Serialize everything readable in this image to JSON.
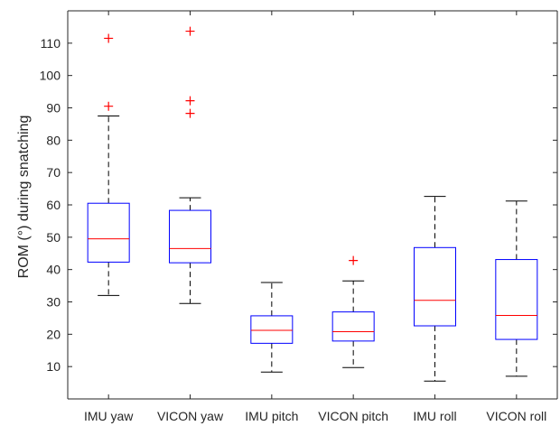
{
  "chart_data": {
    "type": "box",
    "title": "",
    "xlabel": "",
    "ylabel": "ROM (°) during snatching",
    "ylim": [
      0,
      120
    ],
    "yticks": [
      10,
      20,
      30,
      40,
      50,
      60,
      70,
      80,
      90,
      100,
      110
    ],
    "grid": false,
    "categories": [
      "IMU yaw",
      "VICON yaw",
      "IMU pitch",
      "VICON pitch",
      "IMU roll",
      "VICON roll"
    ],
    "boxes": [
      {
        "category": "IMU yaw",
        "whisker_low": 32.0,
        "q1": 42.3,
        "median": 49.5,
        "q3": 60.5,
        "whisker_high": 87.5,
        "outliers": [
          90.5,
          111.5
        ]
      },
      {
        "category": "VICON yaw",
        "whisker_low": 29.5,
        "q1": 42.1,
        "median": 46.5,
        "q3": 58.3,
        "whisker_high": 62.2,
        "outliers": [
          88.3,
          92.2,
          113.7
        ]
      },
      {
        "category": "IMU pitch",
        "whisker_low": 8.3,
        "q1": 17.2,
        "median": 21.2,
        "q3": 25.7,
        "whisker_high": 36.0,
        "outliers": []
      },
      {
        "category": "VICON pitch",
        "whisker_low": 9.7,
        "q1": 17.9,
        "median": 20.8,
        "q3": 26.9,
        "whisker_high": 36.5,
        "outliers": [
          42.8
        ]
      },
      {
        "category": "IMU roll",
        "whisker_low": 5.5,
        "q1": 22.6,
        "median": 30.5,
        "q3": 46.8,
        "whisker_high": 62.6,
        "outliers": []
      },
      {
        "category": "VICON roll",
        "whisker_low": 7.0,
        "q1": 18.4,
        "median": 25.8,
        "q3": 43.1,
        "whisker_high": 61.2,
        "outliers": []
      }
    ],
    "colors": {
      "box": "#0000ff",
      "median": "#ff0000",
      "whisker": "#000000",
      "outlier": "#ff0000",
      "axis": "#262626"
    }
  }
}
